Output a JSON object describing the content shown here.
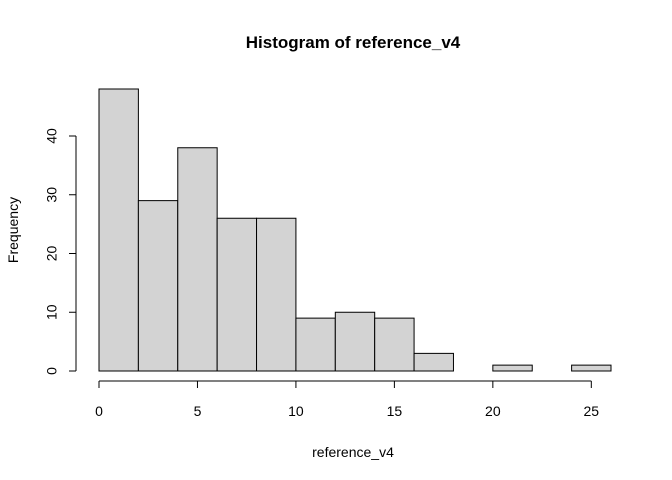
{
  "chart_data": {
    "type": "bar",
    "title": "Histogram of reference_v4",
    "xlabel": "reference_v4",
    "ylabel": "Frequency",
    "bins": [
      {
        "start": 0,
        "end": 2,
        "count": 48
      },
      {
        "start": 2,
        "end": 4,
        "count": 29
      },
      {
        "start": 4,
        "end": 6,
        "count": 38
      },
      {
        "start": 6,
        "end": 8,
        "count": 26
      },
      {
        "start": 8,
        "end": 10,
        "count": 26
      },
      {
        "start": 10,
        "end": 12,
        "count": 9
      },
      {
        "start": 12,
        "end": 14,
        "count": 10
      },
      {
        "start": 14,
        "end": 16,
        "count": 9
      },
      {
        "start": 16,
        "end": 18,
        "count": 3
      },
      {
        "start": 18,
        "end": 20,
        "count": 0
      },
      {
        "start": 20,
        "end": 22,
        "count": 1
      },
      {
        "start": 22,
        "end": 24,
        "count": 0
      },
      {
        "start": 24,
        "end": 26,
        "count": 1
      }
    ],
    "xticks": [
      0,
      5,
      10,
      15,
      20,
      25
    ],
    "yticks": [
      0,
      10,
      20,
      30,
      40
    ],
    "xlim": [
      0,
      26
    ],
    "ylim": [
      0,
      48
    ],
    "grid": false,
    "legend": "none",
    "colors": {
      "bar_fill": "#d3d3d3",
      "bar_stroke": "#000000"
    }
  }
}
